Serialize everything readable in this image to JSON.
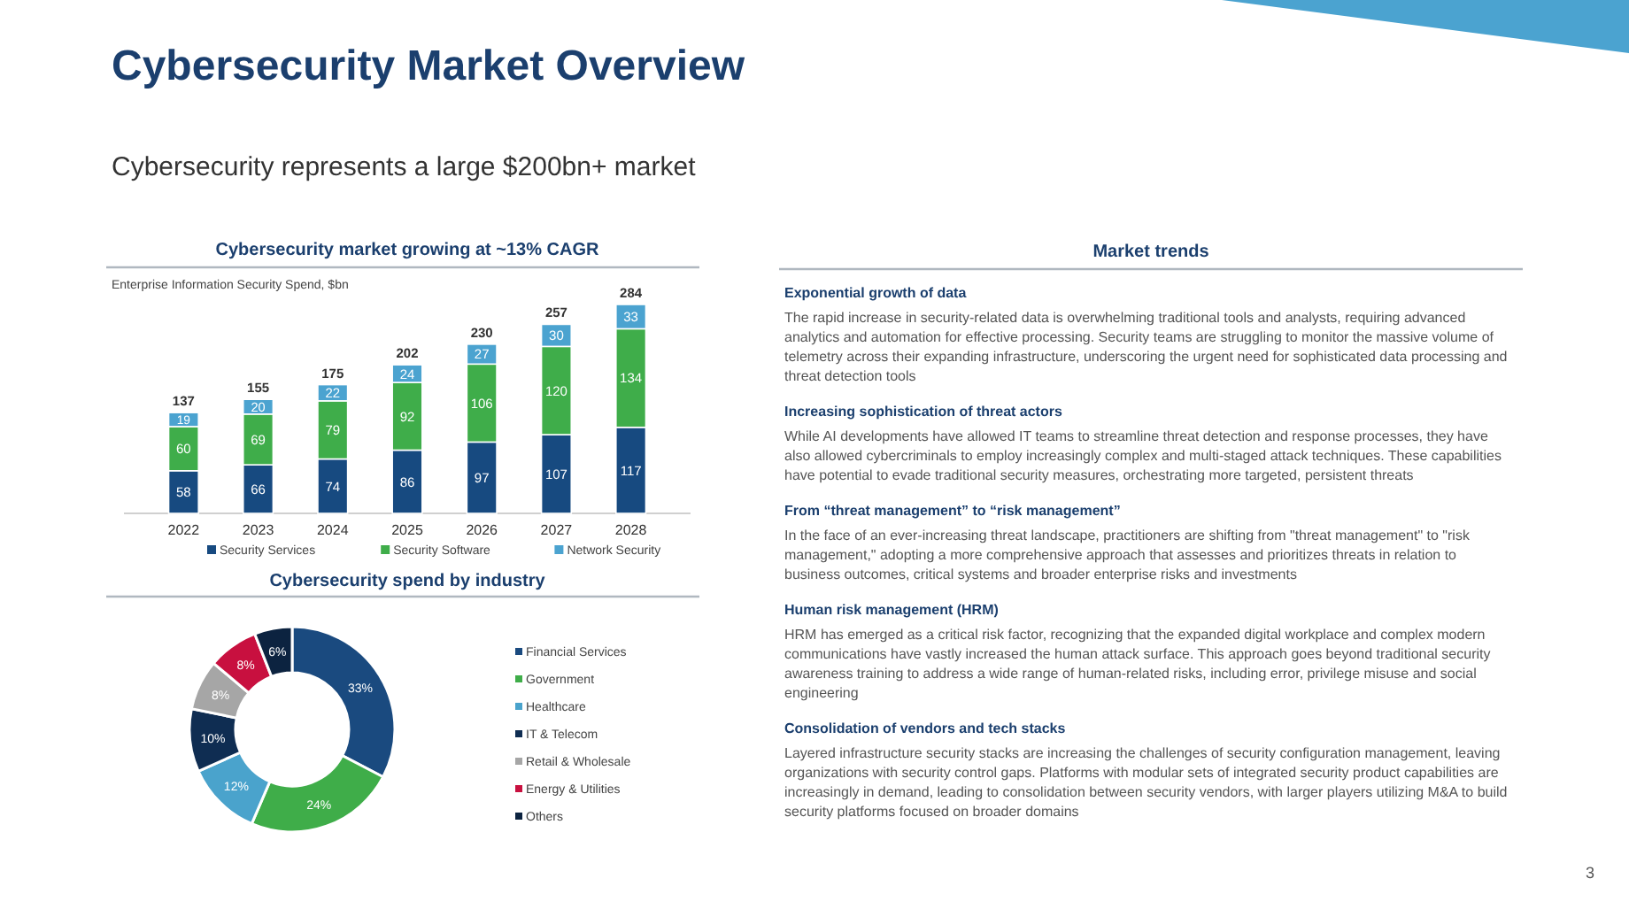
{
  "chart_data": [
    {
      "type": "other",
      "title": "Cybersecurity Market Overview",
      "subtitle": "Cybersecurity represents a large $200bn+ market",
      "annotations": [
        "3"
      ]
    },
    {
      "type": "bar",
      "stacked": true,
      "title": "Cybersecurity market growing at ~13% CAGR",
      "subtitle": "Enterprise Information Security Spend, $bn",
      "categories": [
        "2022",
        "2023",
        "2024",
        "2025",
        "2026",
        "2027",
        "2028"
      ],
      "series": [
        {
          "name": "Security Services",
          "color": "#174a80",
          "values": [
            58,
            66,
            74,
            86,
            97,
            107,
            117
          ]
        },
        {
          "name": "Security Software",
          "color": "#3fad4a",
          "values": [
            60,
            69,
            79,
            92,
            106,
            120,
            134
          ]
        },
        {
          "name": "Network Security",
          "color": "#4ba3d0",
          "values": [
            19,
            20,
            22,
            24,
            27,
            30,
            33
          ]
        }
      ],
      "totals": [
        "137",
        "155",
        "175",
        "202",
        "230",
        "257",
        "284"
      ],
      "data_labels": true,
      "legend": "bottom"
    },
    {
      "type": "donut",
      "title": "Cybersecurity spend by industry",
      "categories": [
        "Financial Services",
        "Government",
        "Healthcare",
        "IT & Telecom",
        "Retail & Wholesale",
        "Energy & Utilities",
        "Others"
      ],
      "values": [
        33,
        24,
        12,
        10,
        8,
        8,
        6
      ],
      "colors": [
        "#1a4a7f",
        "#3fad49",
        "#4aa3cc",
        "#0f2d52",
        "#a6a6a6",
        "#c8103f",
        "#0c2340"
      ],
      "value_labels": [
        "33%",
        "24%",
        "12%",
        "10%",
        "8%",
        "8%",
        "6%"
      ],
      "legend": "right"
    },
    {
      "type": "other",
      "title": "Market trends",
      "annotations": [
        "Exponential growth of data",
        "The rapid increase in security-related data is overwhelming traditional tools and analysts, requiring advanced analytics and automation for effective processing. Security teams are struggling to monitor the massive volume of telemetry across their expanding infrastructure, underscoring the urgent need for sophisticated data processing and threat detection tools",
        "Increasing sophistication of threat actors",
        "While AI developments have allowed IT teams to streamline threat detection and response processes, they have also allowed cybercriminals to employ increasingly complex and multi-staged attack techniques. These capabilities have potential to evade traditional security measures, orchestrating more targeted, persistent threats",
        "From “threat management” to “risk management”",
        "In the face of an ever-increasing threat landscape, practitioners are shifting from \"threat management\" to \"risk management,\" adopting a more comprehensive approach that assesses and prioritizes threats in relation to business outcomes, critical systems and broader enterprise risks and investments",
        "Human risk management (HRM)",
        "HRM has emerged as a critical risk factor, recognizing that the expanded digital workplace and complex modern communications have vastly increased the human attack surface. This approach goes beyond traditional security awareness training to address a wide range of human-related risks, including error, privilege misuse and social engineering",
        "Consolidation of vendors and tech stacks",
        "Layered infrastructure security stacks are increasing the challenges of security configuration management, leaving organizations with security control gaps. Platforms with modular sets of integrated security product capabilities are increasingly in demand, leading to consolidation between security vendors, with larger players utilizing M&A to build security platforms focused on broader domains"
      ]
    }
  ]
}
